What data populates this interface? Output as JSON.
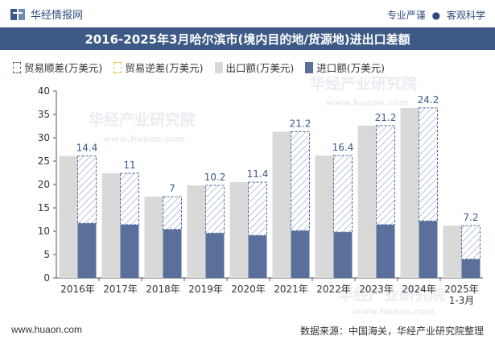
{
  "header": {
    "brand": "华经情报网",
    "tags": [
      "专业严谨",
      "客观科学"
    ]
  },
  "title": "2016-2025年3月哈尔滨市(境内目的地/货源地)进出口差额",
  "legend": {
    "surplus": "贸易顺差(万美元)",
    "deficit": "贸易逆差(万美元)",
    "export": "出口额(万美元)",
    "import": "进口额(万美元)"
  },
  "watermark": {
    "cn": "华经产业研究院",
    "url": "www.huaon.com"
  },
  "footer": {
    "url": "www.huaon.com",
    "source": "数据来源：中国海关，华经产业研究院整理"
  },
  "colors": {
    "title_bg": "#3d5a87",
    "export": "#d9d9d9",
    "import": "#5b6f9c",
    "surplus_border": "#4a6e9a",
    "deficit_border": "#e8c040",
    "label": "#3d5a87"
  },
  "chart_data": {
    "type": "bar",
    "categories": [
      "2016年",
      "2017年",
      "2018年",
      "2019年",
      "2020年",
      "2021年",
      "2022年",
      "2023年",
      "2024年",
      "2025年\n1-3月"
    ],
    "series": [
      {
        "name": "出口额(万美元)",
        "values": [
          26.1,
          22.4,
          17.4,
          19.8,
          20.5,
          31.3,
          26.2,
          32.6,
          36.4,
          11.2
        ]
      },
      {
        "name": "进口额(万美元)",
        "values": [
          11.7,
          11.4,
          10.4,
          9.6,
          9.1,
          10.1,
          9.8,
          11.4,
          12.2,
          4.0
        ]
      },
      {
        "name": "贸易顺差(万美元)",
        "values": [
          14.4,
          11,
          7,
          10.2,
          11.4,
          21.2,
          16.4,
          21.2,
          24.2,
          7.2
        ]
      }
    ],
    "data_labels": [
      "14.4",
      "11",
      "7",
      "10.2",
      "11.4",
      "21.2",
      "16.4",
      "21.2",
      "24.2",
      "7.2"
    ],
    "y_ticks": [
      0,
      5,
      10,
      15,
      20,
      25,
      30,
      35,
      40
    ],
    "ylim": [
      0,
      40
    ],
    "grid": false,
    "legend_position": "top"
  }
}
